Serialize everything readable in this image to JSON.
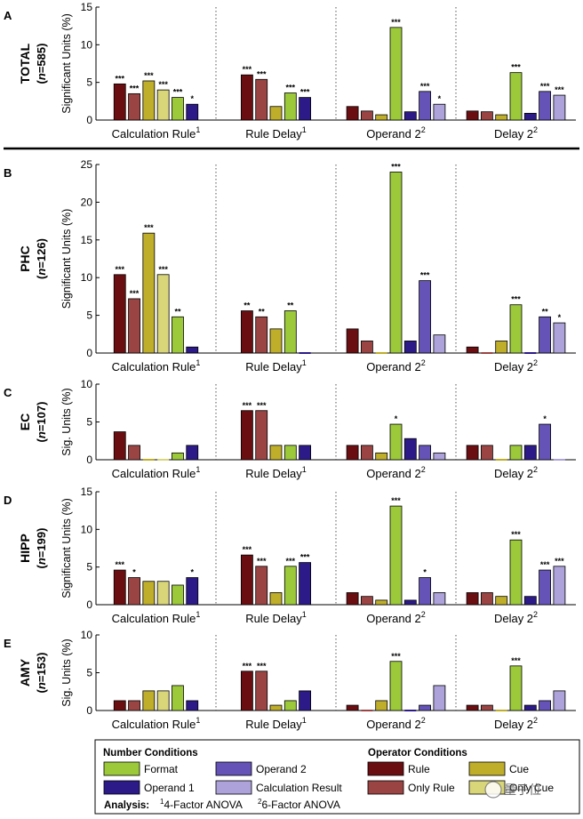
{
  "figure": {
    "group_labels": [
      "Calculation Rule",
      "Rule Delay",
      "Operand 2",
      "Delay 2"
    ],
    "group_superscripts": [
      "1",
      "1",
      "2",
      "2"
    ],
    "series_names": [
      "Rule",
      "Only Rule",
      "Cue",
      "Only Cue",
      "Format",
      "Operand 1",
      "Operand 2",
      "Calculation Result"
    ],
    "colors": [
      "#6b0e12",
      "#9a4444",
      "#bfae2a",
      "#d9d67a",
      "#9cc93a",
      "#2c1a88",
      "#6553b8",
      "#aea2da"
    ]
  },
  "chart_data": [
    {
      "panel_letter": "A",
      "row_title": "TOTAL",
      "n_label": "n",
      "n_value": "=585",
      "type": "bar",
      "ylabel": "Significant Units (%)",
      "ylim": [
        0,
        15
      ],
      "yticks": [
        "0",
        "5",
        "10",
        "15"
      ],
      "groups": [
        {
          "series": [
            0,
            1,
            2,
            3,
            4,
            5
          ],
          "values": [
            4.8,
            3.5,
            5.2,
            4.0,
            3.0,
            2.1
          ],
          "stars": [
            "***",
            "***",
            "***",
            "***",
            "***",
            "*"
          ]
        },
        {
          "series": [
            0,
            1,
            2,
            4,
            5
          ],
          "values": [
            6.0,
            5.4,
            1.8,
            3.6,
            3.0
          ],
          "stars": [
            "***",
            "***",
            "",
            "***",
            "***"
          ]
        },
        {
          "series": [
            0,
            1,
            2,
            4,
            5,
            6,
            7
          ],
          "values": [
            1.8,
            1.2,
            0.7,
            12.3,
            1.1,
            3.8,
            2.1
          ],
          "stars": [
            "",
            "",
            "",
            "***",
            "",
            "***",
            "*"
          ]
        },
        {
          "series": [
            0,
            1,
            2,
            4,
            5,
            6,
            7
          ],
          "values": [
            1.2,
            1.1,
            0.7,
            6.3,
            0.9,
            3.8,
            3.3
          ],
          "stars": [
            "",
            "",
            "",
            "***",
            "",
            "***",
            "***"
          ]
        }
      ]
    },
    {
      "panel_letter": "B",
      "row_title": "PHC",
      "n_label": "n",
      "n_value": "=126",
      "type": "bar",
      "ylabel": "Significant Units (%)",
      "ylim": [
        0,
        25
      ],
      "yticks": [
        "0",
        "5",
        "10",
        "15",
        "20",
        "25"
      ],
      "groups": [
        {
          "series": [
            0,
            1,
            2,
            3,
            4,
            5
          ],
          "values": [
            10.4,
            7.2,
            15.9,
            10.4,
            4.8,
            0.8
          ],
          "stars": [
            "***",
            "***",
            "***",
            "***",
            "**",
            ""
          ]
        },
        {
          "series": [
            0,
            1,
            2,
            4,
            5
          ],
          "values": [
            5.6,
            4.8,
            3.2,
            5.6,
            0.0
          ],
          "stars": [
            "**",
            "**",
            "",
            "**",
            ""
          ]
        },
        {
          "series": [
            0,
            1,
            2,
            4,
            5,
            6,
            7
          ],
          "values": [
            3.2,
            1.6,
            0.0,
            24.0,
            1.6,
            9.6,
            2.4
          ],
          "stars": [
            "",
            "",
            "",
            "***",
            "",
            "***",
            ""
          ]
        },
        {
          "series": [
            0,
            1,
            2,
            4,
            5,
            6,
            7
          ],
          "values": [
            0.8,
            0.0,
            1.6,
            6.4,
            0.0,
            4.8,
            4.0
          ],
          "stars": [
            "",
            "",
            "",
            "***",
            "",
            "**",
            "*"
          ]
        }
      ]
    },
    {
      "panel_letter": "C",
      "row_title": "EC",
      "n_label": "n",
      "n_value": "=107",
      "type": "bar",
      "ylabel": "Sig. Units (%)",
      "ylim": [
        0,
        10
      ],
      "yticks": [
        "0",
        "5",
        "10"
      ],
      "groups": [
        {
          "series": [
            0,
            1,
            2,
            3,
            4,
            5
          ],
          "values": [
            3.7,
            1.9,
            0.0,
            0.0,
            0.9,
            1.9
          ],
          "stars": [
            "",
            "",
            "",
            "",
            "",
            ""
          ]
        },
        {
          "series": [
            0,
            1,
            2,
            4,
            5
          ],
          "values": [
            6.5,
            6.5,
            1.9,
            1.9,
            1.9
          ],
          "stars": [
            "***",
            "***",
            "",
            "",
            ""
          ]
        },
        {
          "series": [
            0,
            1,
            2,
            4,
            5,
            6,
            7
          ],
          "values": [
            1.9,
            1.9,
            0.9,
            4.7,
            2.8,
            1.9,
            0.9
          ],
          "stars": [
            "",
            "",
            "",
            "*",
            "",
            "",
            ""
          ]
        },
        {
          "series": [
            0,
            1,
            2,
            4,
            5,
            6,
            7
          ],
          "values": [
            1.9,
            1.9,
            0.0,
            1.9,
            1.9,
            4.7,
            0.0
          ],
          "stars": [
            "",
            "",
            "",
            "",
            "",
            "*",
            ""
          ]
        }
      ]
    },
    {
      "panel_letter": "D",
      "row_title": "HIPP",
      "n_label": "n",
      "n_value": "=199",
      "type": "bar",
      "ylabel": "Significant Units (%)",
      "ylim": [
        0,
        15
      ],
      "yticks": [
        "0",
        "5",
        "10",
        "15"
      ],
      "groups": [
        {
          "series": [
            0,
            1,
            2,
            3,
            4,
            5
          ],
          "values": [
            4.6,
            3.6,
            3.1,
            3.1,
            2.6,
            3.6
          ],
          "stars": [
            "***",
            "*",
            "",
            "",
            "",
            "*"
          ]
        },
        {
          "series": [
            0,
            1,
            2,
            4,
            5
          ],
          "values": [
            6.6,
            5.1,
            1.6,
            5.1,
            5.6
          ],
          "stars": [
            "***",
            "***",
            "",
            "***",
            "***"
          ]
        },
        {
          "series": [
            0,
            1,
            2,
            4,
            5,
            6,
            7
          ],
          "values": [
            1.6,
            1.1,
            0.6,
            13.1,
            0.6,
            3.6,
            1.6
          ],
          "stars": [
            "",
            "",
            "",
            "***",
            "",
            "*",
            ""
          ]
        },
        {
          "series": [
            0,
            1,
            2,
            4,
            5,
            6,
            7
          ],
          "values": [
            1.6,
            1.6,
            1.1,
            8.6,
            1.1,
            4.6,
            5.1
          ],
          "stars": [
            "",
            "",
            "",
            "***",
            "",
            "***",
            "***"
          ]
        }
      ]
    },
    {
      "panel_letter": "E",
      "row_title": "AMY",
      "n_label": "n",
      "n_value": "=153",
      "type": "bar",
      "ylabel": "Sig. Units (%)",
      "ylim": [
        0,
        10
      ],
      "yticks": [
        "0",
        "5",
        "10"
      ],
      "groups": [
        {
          "series": [
            0,
            1,
            2,
            3,
            4,
            5
          ],
          "values": [
            1.3,
            1.3,
            2.6,
            2.6,
            3.3,
            1.3
          ],
          "stars": [
            "",
            "",
            "",
            "",
            "",
            ""
          ]
        },
        {
          "series": [
            0,
            1,
            2,
            4,
            5
          ],
          "values": [
            5.2,
            5.2,
            0.7,
            1.3,
            2.6
          ],
          "stars": [
            "***",
            "***",
            "",
            "",
            ""
          ]
        },
        {
          "series": [
            0,
            1,
            2,
            4,
            5,
            6,
            7
          ],
          "values": [
            0.7,
            0.0,
            1.3,
            6.5,
            0.0,
            0.7,
            3.3
          ],
          "stars": [
            "",
            "",
            "",
            "***",
            "",
            "",
            ""
          ]
        },
        {
          "series": [
            0,
            1,
            2,
            4,
            5,
            6,
            7
          ],
          "values": [
            0.7,
            0.7,
            0.0,
            5.9,
            0.7,
            1.3,
            2.6
          ],
          "stars": [
            "",
            "",
            "",
            "***",
            "",
            "",
            ""
          ]
        }
      ]
    }
  ],
  "legend": {
    "number_title": "Number Conditions",
    "operator_title": "Operator Conditions",
    "number_items": [
      {
        "label": "Format",
        "color": "#9cc93a"
      },
      {
        "label": "Operand 2",
        "color": "#6553b8"
      },
      {
        "label": "Operand 1",
        "color": "#2c1a88"
      },
      {
        "label": "Calculation Result",
        "color": "#aea2da"
      }
    ],
    "operator_items": [
      {
        "label": "Rule",
        "color": "#6b0e12"
      },
      {
        "label": "Cue",
        "color": "#bfae2a"
      },
      {
        "label": "Only Rule",
        "color": "#9a4444"
      },
      {
        "label": "Only Cue",
        "color": "#d9d67a"
      }
    ],
    "analysis_label": "Analysis:",
    "analysis_1_sup": "1",
    "analysis_1_text": "4-Factor ANOVA",
    "analysis_2_sup": "2",
    "analysis_2_text": "6-Factor ANOVA"
  },
  "watermark": "量子位"
}
